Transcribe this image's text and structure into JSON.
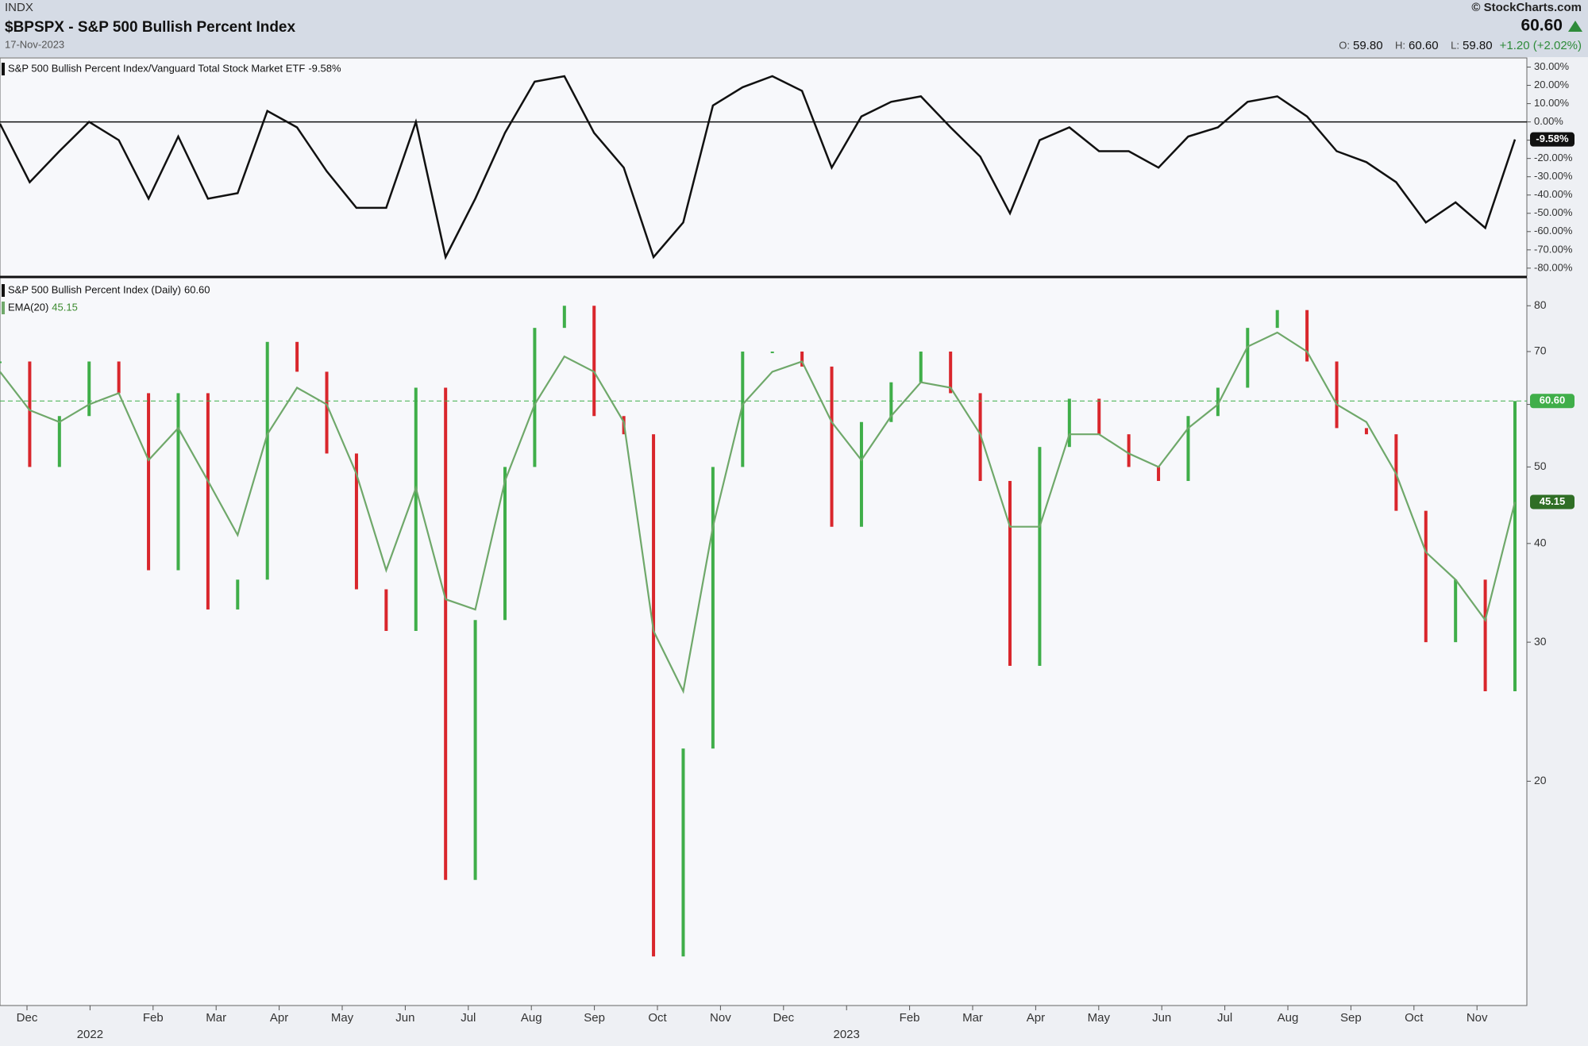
{
  "header": {
    "exchange": "INDX",
    "title": "$BPSPX - S&P 500 Bullish Percent Index",
    "date": "17-Nov-2023",
    "source": "© StockCharts.com",
    "last": "60.60",
    "open_label": "O:",
    "open": "59.80",
    "high_label": "H:",
    "high": "60.60",
    "low_label": "L:",
    "low": "59.80",
    "change": "+1.20 (+2.02%)"
  },
  "chart_data": [
    {
      "type": "line",
      "reference_line": 0,
      "ylim": [
        -84.4,
        35
      ],
      "yticks": [
        {
          "value": 30,
          "label": "30.00%"
        },
        {
          "value": 20,
          "label": "20.00%"
        },
        {
          "value": 10,
          "label": "10.00%"
        },
        {
          "value": 0,
          "label": "0.00%"
        },
        {
          "value": -10,
          "label": "-10.00%"
        },
        {
          "value": -20,
          "label": "-20.00%"
        },
        {
          "value": -30,
          "label": "-30.00%"
        },
        {
          "value": -40,
          "label": "-40.00%"
        },
        {
          "value": -50,
          "label": "-50.00%"
        },
        {
          "value": -60,
          "label": "-60.00%"
        },
        {
          "value": -70,
          "label": "-70.00%"
        },
        {
          "value": -80,
          "label": "-80.00%"
        }
      ],
      "series": [
        {
          "name": "S&P 500 Bullish Percent Index/Vanguard Total Stock Market ETF",
          "last_label": "-9.58%",
          "color": "#111111",
          "values": [
            -1,
            -33,
            -16,
            0,
            -10,
            -42,
            -8,
            -42,
            -39,
            6,
            -3,
            -27,
            -47,
            -47,
            0,
            -74,
            -42,
            -6,
            22,
            25,
            -6,
            -25,
            -74,
            -55,
            9,
            19,
            25,
            17,
            -25,
            3,
            11,
            14,
            -3,
            -19,
            -50,
            -10,
            -3,
            -16,
            -16,
            -25,
            -8,
            -3,
            11,
            14,
            3,
            -16,
            -22,
            -33,
            -55,
            -44,
            -58,
            -9.58
          ]
        }
      ]
    },
    {
      "type": "candle",
      "log_scale": true,
      "ylim": [
        10.4,
        86.4
      ],
      "yticks": [
        20,
        30,
        40,
        50,
        60,
        70,
        80
      ],
      "up_color": "#3fae49",
      "down_color": "#d9262c",
      "x_axis": {
        "months": [
          "Dec",
          null,
          "Feb",
          "Mar",
          "Apr",
          "May",
          "Jun",
          "Jul",
          "Aug",
          "Sep",
          "Oct",
          "Nov",
          "Dec",
          null,
          "Feb",
          "Mar",
          "Apr",
          "May",
          "Jun",
          "Jul",
          "Aug",
          "Sep",
          "Oct",
          "Nov"
        ],
        "years": [
          "2022",
          "2023"
        ]
      },
      "series": [
        {
          "name": "S&P 500 Bullish Percent Index (Daily)",
          "last_label": "60.60",
          "color": "#111111",
          "values": [
            68,
            50,
            58,
            68,
            62,
            37,
            62,
            33,
            36,
            72,
            66,
            52,
            35,
            31,
            63,
            15,
            32,
            50,
            75,
            80,
            58,
            55,
            12,
            22,
            50,
            70,
            70,
            67,
            42,
            57,
            64,
            70,
            62,
            48,
            28,
            53,
            61,
            55,
            50,
            48,
            58,
            63,
            75,
            79,
            68,
            56,
            55,
            44,
            30,
            36,
            26,
            60.6
          ]
        },
        {
          "name": "EMA(20)",
          "last_label": "45.15",
          "color": "#6fa86a",
          "values": [
            66,
            59,
            57,
            60,
            62,
            51,
            56,
            48,
            41,
            55,
            63,
            60,
            49,
            37,
            47,
            34,
            33,
            48,
            60,
            69,
            66,
            57,
            31,
            26,
            42,
            60,
            66,
            68,
            57,
            51,
            58,
            64,
            63,
            55,
            42,
            42,
            55,
            55,
            52,
            50,
            56,
            60,
            71,
            74,
            70,
            60,
            57,
            49,
            39,
            36,
            32,
            45.15
          ]
        }
      ]
    }
  ]
}
